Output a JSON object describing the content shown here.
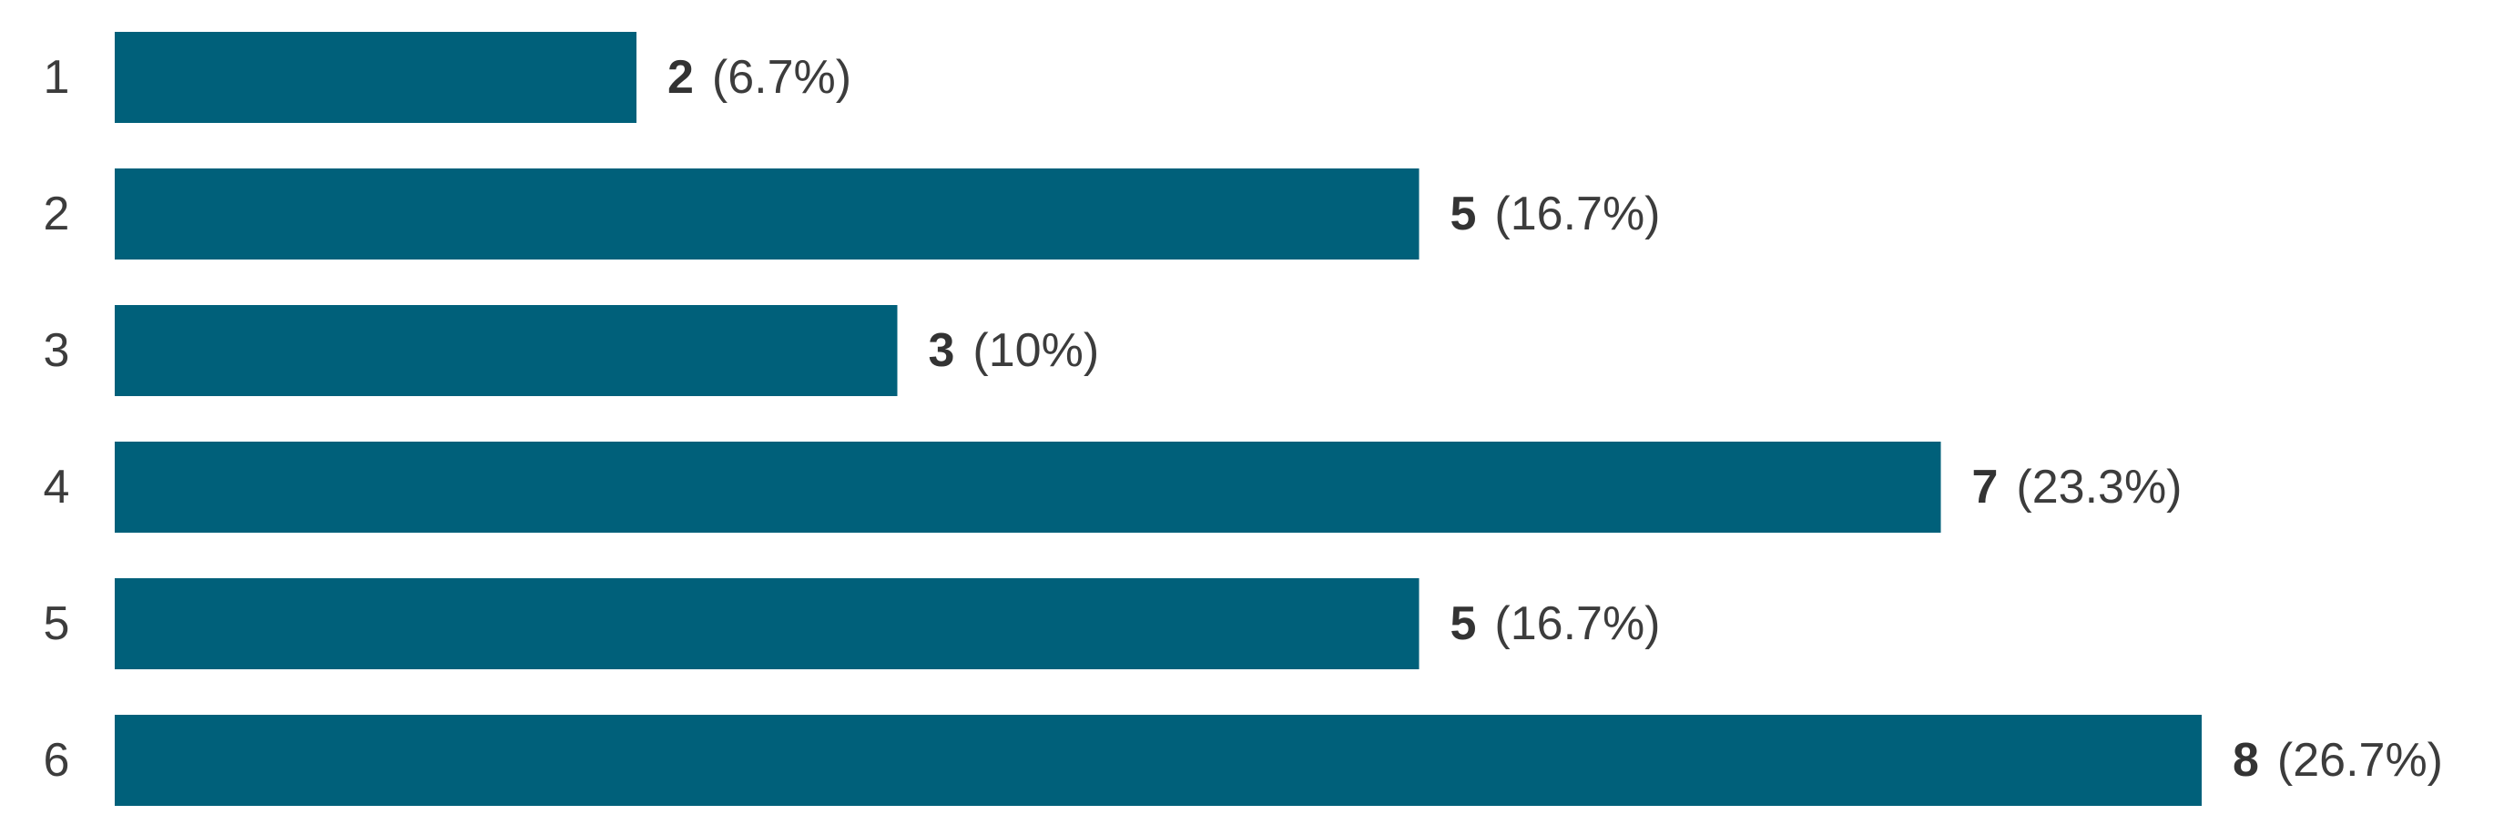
{
  "chart_data": {
    "type": "bar",
    "orientation": "horizontal",
    "categories": [
      "1",
      "2",
      "3",
      "4",
      "5",
      "6"
    ],
    "values": [
      2,
      5,
      3,
      7,
      5,
      8
    ],
    "percent_labels": [
      "(6.7%)",
      "(16.7%)",
      "(10%)",
      "(23.3%)",
      "(16.7%)",
      "(26.7%)"
    ],
    "xlim": [
      0,
      8
    ],
    "grid": false,
    "bar_color": "#00607a",
    "title": "",
    "xlabel": "",
    "ylabel": ""
  }
}
